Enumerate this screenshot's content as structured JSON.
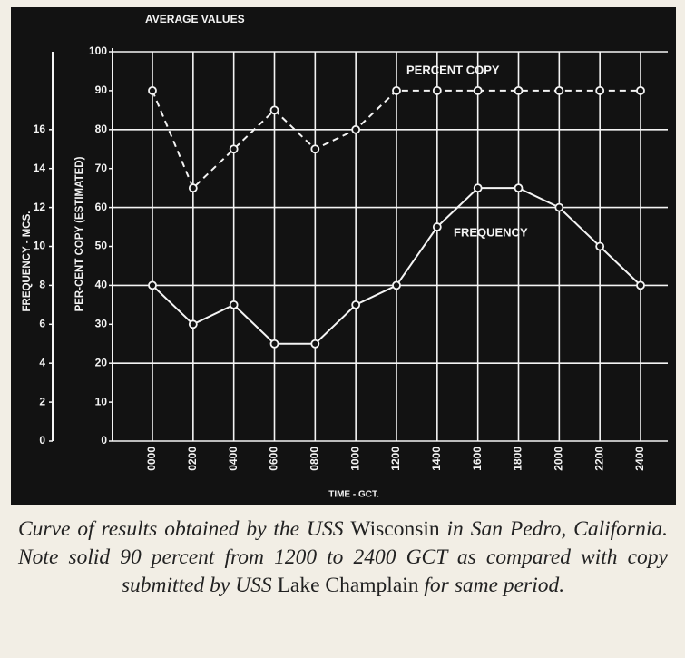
{
  "chart_data": {
    "type": "line",
    "title": "AVERAGE VALUES",
    "categories": [
      "0000",
      "0200",
      "0400",
      "0600",
      "0800",
      "1000",
      "1200",
      "1400",
      "1600",
      "1800",
      "2000",
      "2200",
      "2400"
    ],
    "x_label": "TIME - GCT.",
    "y_label": "PER-CENT COPY (ESTIMATED)",
    "y2_label": "FREQUENCY - MCS.",
    "ylim": [
      0,
      100
    ],
    "yticks": [
      0,
      10,
      20,
      30,
      40,
      50,
      60,
      70,
      80,
      90,
      100
    ],
    "y2lim": [
      0,
      20
    ],
    "y2ticks": [
      0,
      2,
      4,
      6,
      8,
      10,
      12,
      14,
      16
    ],
    "grid": true,
    "series": [
      {
        "name": "PERCENT COPY",
        "color": "#f4f4f4",
        "style": "dashed",
        "values": [
          90,
          65,
          75,
          85,
          75,
          80,
          90,
          90,
          90,
          90,
          90,
          90,
          90
        ]
      },
      {
        "name": "FREQUENCY",
        "color": "#f4f4f4",
        "style": "solid",
        "axis": "y2",
        "values": [
          8,
          6,
          7,
          5,
          5,
          7,
          8,
          11,
          13,
          13,
          12,
          10,
          8
        ]
      }
    ],
    "caption": [
      {
        "text": "Curve of results obtained by the USS ",
        "italic": true
      },
      {
        "text": "Wisconsin",
        "italic": false
      },
      {
        "text": " in San Pedro, California. Note solid 90 percent from 1200 to 2400 GCT as compared with copy submitted by USS ",
        "italic": true
      },
      {
        "text": "Lake Champlain",
        "italic": false
      },
      {
        "text": " for same period.",
        "italic": true
      }
    ]
  }
}
